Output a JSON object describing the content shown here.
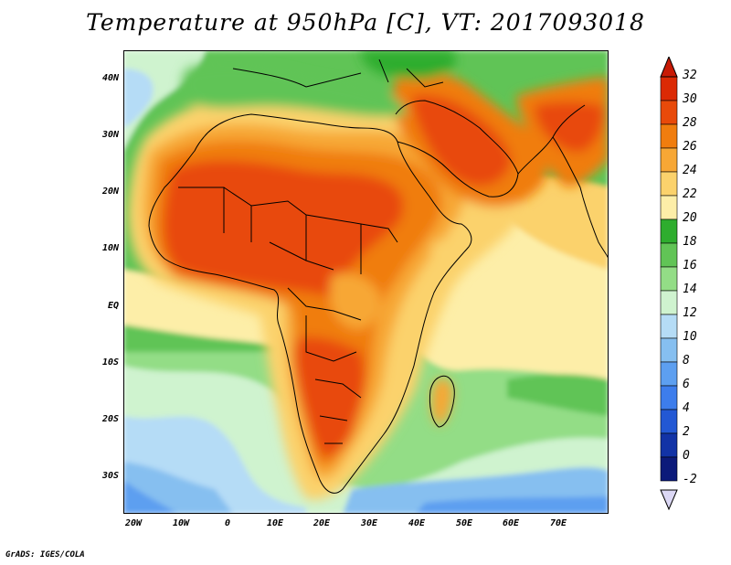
{
  "title": "Temperature at 950hPa [C], VT: 2017093018",
  "footer": "GrADS: IGES/COLA",
  "map": {
    "region": "Africa and Arabian Peninsula",
    "y_axis_labels": [
      "40N",
      "30N",
      "20N",
      "10N",
      "EQ",
      "10S",
      "20S",
      "30S"
    ],
    "x_axis_labels": [
      "20W",
      "10W",
      "0",
      "10E",
      "20E",
      "30E",
      "40E",
      "50E",
      "60E",
      "70E"
    ],
    "lon_range": [
      -22,
      80
    ],
    "lat_range": [
      -36,
      46
    ]
  },
  "colorbar": {
    "labels": [
      "32",
      "30",
      "28",
      "26",
      "24",
      "22",
      "20",
      "18",
      "16",
      "14",
      "12",
      "10",
      "8",
      "6",
      "4",
      "2",
      "0",
      "-2"
    ],
    "colors": [
      "#db2a05",
      "#e84a0a",
      "#f07d0e",
      "#f7a735",
      "#fbd26c",
      "#fdeea8",
      "#2ead2e",
      "#61c456",
      "#93dd86",
      "#cff3cf",
      "#b5dcf6",
      "#86bff0",
      "#5d9ff0",
      "#3d7dec",
      "#2358d4",
      "#1233a6",
      "#0c1a7a"
    ],
    "top_arrow_color": "#c81a05",
    "bottom_arrow_color": "#dcd8f5"
  }
}
